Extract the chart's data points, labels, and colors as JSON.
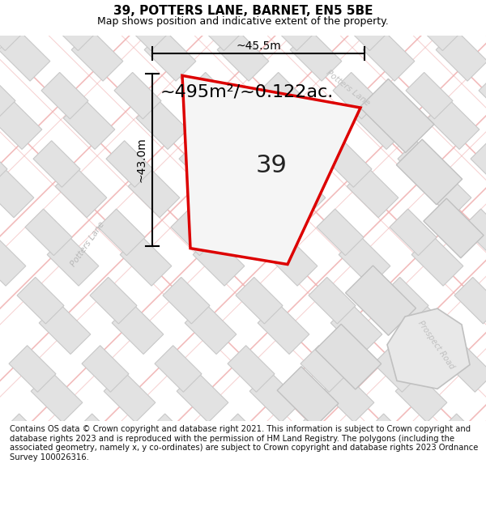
{
  "title": "39, POTTERS LANE, BARNET, EN5 5BE",
  "subtitle": "Map shows position and indicative extent of the property.",
  "area_label": "~495m²/~0.122ac.",
  "number_label": "39",
  "dim_width": "~45.5m",
  "dim_height": "~43.0m",
  "road_label_left": "Potters Lane",
  "road_label_right": "Potters Lane",
  "road_label_bottom": "Prospect Road",
  "copyright_text": "Contains OS data © Crown copyright and database right 2021. This information is subject to Crown copyright and database rights 2023 and is reproduced with the permission of HM Land Registry. The polygons (including the associated geometry, namely x, y co-ordinates) are subject to Crown copyright and database rights 2023 Ordnance Survey 100026316.",
  "bg_color": "#ffffff",
  "map_bg": "#f7f7f7",
  "plot_outline_color": "#dd0000",
  "plot_fill_color": "#f0f0f0",
  "building_fill": "#e2e2e2",
  "building_edge": "#c8c8c8",
  "road_color": "#f0b0b0",
  "title_fontsize": 11,
  "subtitle_fontsize": 9,
  "area_fontsize": 16,
  "number_fontsize": 22,
  "copyright_fontsize": 7.2,
  "dim_fontsize": 10
}
